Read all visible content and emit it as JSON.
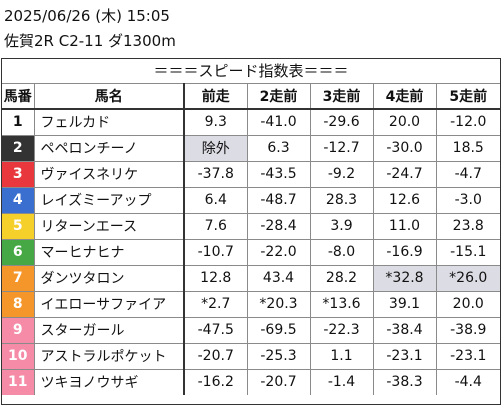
{
  "header": {
    "datetime": "2025/06/26 (木) 15:05",
    "race": "佐賀2R C2-11 ダ1300m"
  },
  "table": {
    "title": "＝＝＝スピード指数表＝＝＝",
    "columns": [
      "馬番",
      "馬名",
      "前走",
      "2走前",
      "3走前",
      "4走前",
      "5走前"
    ],
    "rows": [
      {
        "no": "1",
        "name": "フェルカド",
        "v": [
          "9.3",
          "-41.0",
          "-29.6",
          "20.0",
          "-12.0"
        ],
        "bg": "#ffffff",
        "fg": "#111111",
        "hl": []
      },
      {
        "no": "2",
        "name": "ペペロンチーノ",
        "v": [
          "除外",
          "6.3",
          "-12.7",
          "-30.0",
          "18.5"
        ],
        "bg": "#333333",
        "fg": "#ffffff",
        "hl": [
          0
        ]
      },
      {
        "no": "3",
        "name": "ヴァイスネリケ",
        "v": [
          "-37.8",
          "-43.5",
          "-9.2",
          "-24.7",
          "-4.7"
        ],
        "bg": "#e8383d",
        "fg": "#ffffff",
        "hl": []
      },
      {
        "no": "4",
        "name": "レイズミーアップ",
        "v": [
          "6.4",
          "-48.7",
          "28.3",
          "12.6",
          "-3.0"
        ],
        "bg": "#3a6fd0",
        "fg": "#ffffff",
        "hl": []
      },
      {
        "no": "5",
        "name": "リターンエース",
        "v": [
          "7.6",
          "-28.4",
          "3.9",
          "11.0",
          "23.8"
        ],
        "bg": "#f5cf2a",
        "fg": "#ffffff",
        "hl": []
      },
      {
        "no": "6",
        "name": "マーヒナヒナ",
        "v": [
          "-10.7",
          "-22.0",
          "-8.0",
          "-16.9",
          "-15.1"
        ],
        "bg": "#45a844",
        "fg": "#ffffff",
        "hl": []
      },
      {
        "no": "7",
        "name": "ダンツタロン",
        "v": [
          "12.8",
          "43.4",
          "28.2",
          "*32.8",
          "*26.0"
        ],
        "bg": "#f5962a",
        "fg": "#ffffff",
        "hl": [
          3,
          4
        ]
      },
      {
        "no": "8",
        "name": "イエローサファイア",
        "v": [
          "*2.7",
          "*20.3",
          "*13.6",
          "39.1",
          "20.0"
        ],
        "bg": "#f5962a",
        "fg": "#ffffff",
        "hl": []
      },
      {
        "no": "9",
        "name": "スターガール",
        "v": [
          "-47.5",
          "-69.5",
          "-22.3",
          "-38.4",
          "-38.9"
        ],
        "bg": "#f58ba6",
        "fg": "#ffffff",
        "hl": []
      },
      {
        "no": "10",
        "name": "アストラルポケット",
        "v": [
          "-20.7",
          "-25.3",
          "1.1",
          "-23.1",
          "-23.1"
        ],
        "bg": "#f58ba6",
        "fg": "#ffffff",
        "hl": []
      },
      {
        "no": "11",
        "name": "ツキヨノウサギ",
        "v": [
          "-16.2",
          "-20.7",
          "-1.4",
          "-38.3",
          "-4.4"
        ],
        "bg": "#f58ba6",
        "fg": "#ffffff",
        "hl": []
      }
    ]
  }
}
